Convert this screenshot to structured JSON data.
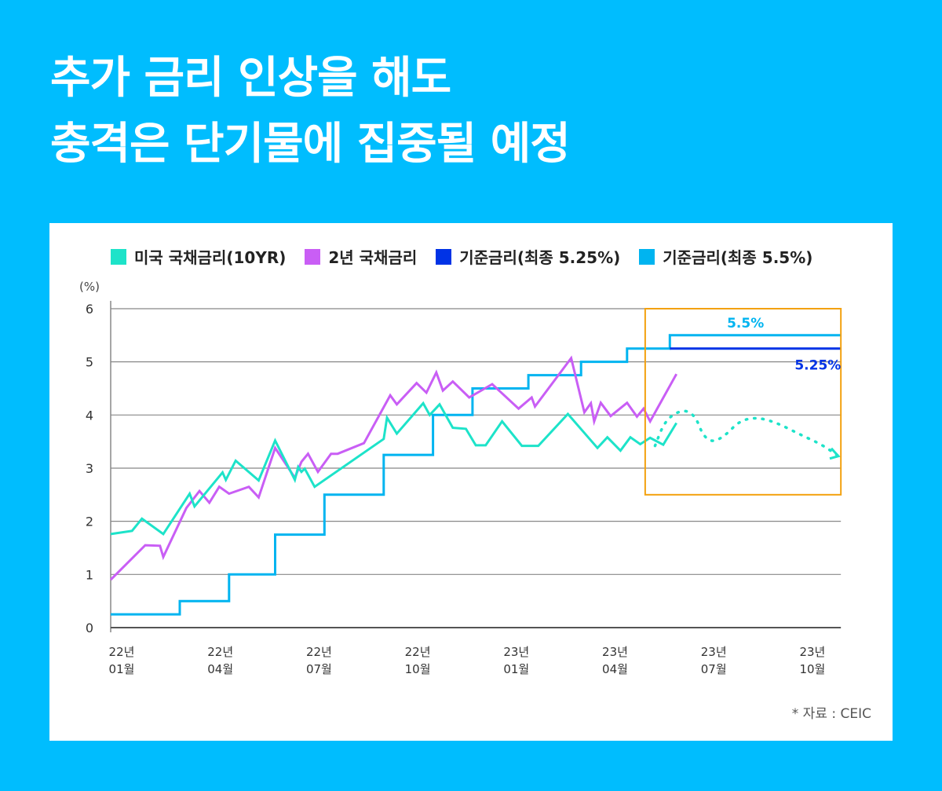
{
  "header": {
    "title_lines": [
      "추가 금리 인상을 해도",
      "충격은 단기물에 집중될 예정"
    ]
  },
  "source_note": "* 자료 : CEIC",
  "colors": {
    "background": "#00bdfe",
    "card": "#ffffff",
    "us10y": "#1de3c9",
    "us2y": "#c95ef5",
    "fed_525": "#0033e6",
    "fed_55": "#00b4f0",
    "highlight_box": "#f3a10f",
    "grid": "#777777"
  },
  "chart_data": {
    "type": "line",
    "title": "추가 금리 인상을 해도 충격은 단기물에 집중될 예정",
    "ylabel": "(%)",
    "xlabel": "",
    "ylim": [
      0,
      6
    ],
    "yticks": [
      0,
      1,
      2,
      3,
      4,
      5,
      6
    ],
    "grid": true,
    "legend_position": "top",
    "x_unit": "months since 2022-01",
    "xlim": [
      0,
      22.2
    ],
    "xticks": [
      {
        "x": 0,
        "line1": "22년",
        "line2": "01월"
      },
      {
        "x": 3,
        "line1": "22년",
        "line2": "04월"
      },
      {
        "x": 6,
        "line1": "22년",
        "line2": "07월"
      },
      {
        "x": 9,
        "line1": "22년",
        "line2": "10월"
      },
      {
        "x": 12,
        "line1": "23년",
        "line2": "01월"
      },
      {
        "x": 15,
        "line1": "23년",
        "line2": "04월"
      },
      {
        "x": 18,
        "line1": "23년",
        "line2": "07월"
      },
      {
        "x": 21,
        "line1": "23년",
        "line2": "10월"
      }
    ],
    "series": [
      {
        "key": "us10y",
        "name": "미국 국채금리(10YR)",
        "color": "#1de3c9",
        "style": "solid",
        "points": [
          [
            0,
            1.76
          ],
          [
            0.65,
            1.82
          ],
          [
            0.95,
            2.05
          ],
          [
            1.6,
            1.76
          ],
          [
            2.4,
            2.52
          ],
          [
            2.55,
            2.28
          ],
          [
            3.4,
            2.92
          ],
          [
            3.5,
            2.78
          ],
          [
            3.8,
            3.14
          ],
          [
            4.5,
            2.77
          ],
          [
            5.0,
            3.52
          ],
          [
            5.6,
            2.78
          ],
          [
            5.7,
            3.02
          ],
          [
            5.8,
            2.93
          ],
          [
            5.9,
            2.99
          ],
          [
            6.2,
            2.65
          ],
          [
            8.3,
            3.55
          ],
          [
            8.4,
            3.95
          ],
          [
            8.7,
            3.65
          ],
          [
            9.5,
            4.22
          ],
          [
            9.7,
            4.0
          ],
          [
            10.0,
            4.2
          ],
          [
            10.4,
            3.76
          ],
          [
            10.8,
            3.74
          ],
          [
            11.1,
            3.43
          ],
          [
            11.4,
            3.43
          ],
          [
            11.9,
            3.88
          ],
          [
            12.5,
            3.42
          ],
          [
            13.0,
            3.42
          ],
          [
            13.9,
            4.02
          ],
          [
            14.8,
            3.38
          ],
          [
            15.1,
            3.58
          ],
          [
            15.5,
            3.33
          ],
          [
            15.8,
            3.58
          ],
          [
            16.1,
            3.45
          ],
          [
            16.4,
            3.57
          ],
          [
            16.8,
            3.44
          ],
          [
            17.2,
            3.85
          ]
        ]
      },
      {
        "key": "us2y",
        "name": "2년 국채금리",
        "color": "#c95ef5",
        "style": "solid",
        "points": [
          [
            0,
            0.9
          ],
          [
            1.05,
            1.55
          ],
          [
            1.5,
            1.54
          ],
          [
            1.6,
            1.33
          ],
          [
            2.3,
            2.25
          ],
          [
            2.7,
            2.57
          ],
          [
            3.0,
            2.35
          ],
          [
            3.3,
            2.65
          ],
          [
            3.6,
            2.52
          ],
          [
            4.2,
            2.65
          ],
          [
            4.5,
            2.45
          ],
          [
            5.0,
            3.38
          ],
          [
            5.6,
            2.82
          ],
          [
            5.8,
            3.12
          ],
          [
            6.0,
            3.27
          ],
          [
            6.3,
            2.93
          ],
          [
            6.7,
            3.27
          ],
          [
            6.9,
            3.27
          ],
          [
            7.7,
            3.47
          ],
          [
            8.5,
            4.37
          ],
          [
            8.7,
            4.2
          ],
          [
            9.3,
            4.6
          ],
          [
            9.6,
            4.42
          ],
          [
            9.9,
            4.8
          ],
          [
            10.1,
            4.46
          ],
          [
            10.4,
            4.63
          ],
          [
            10.9,
            4.33
          ],
          [
            11.6,
            4.58
          ],
          [
            12.4,
            4.12
          ],
          [
            12.8,
            4.33
          ],
          [
            12.9,
            4.16
          ],
          [
            14.0,
            5.07
          ],
          [
            14.4,
            4.05
          ],
          [
            14.6,
            4.22
          ],
          [
            14.7,
            3.88
          ],
          [
            14.9,
            4.23
          ],
          [
            15.2,
            3.98
          ],
          [
            15.7,
            4.23
          ],
          [
            16.0,
            3.97
          ],
          [
            16.2,
            4.12
          ],
          [
            16.4,
            3.88
          ],
          [
            17.2,
            4.77
          ]
        ]
      },
      {
        "key": "fed_525",
        "name": "기준금리(최종 5.25%)",
        "color": "#0033e6",
        "style": "step",
        "points": [
          [
            0,
            0.25
          ],
          [
            2.1,
            0.25
          ],
          [
            2.1,
            0.5
          ],
          [
            3.6,
            0.5
          ],
          [
            3.6,
            1.0
          ],
          [
            5.0,
            1.0
          ],
          [
            5.0,
            1.75
          ],
          [
            6.5,
            1.75
          ],
          [
            6.5,
            2.5
          ],
          [
            8.3,
            2.5
          ],
          [
            8.3,
            3.25
          ],
          [
            9.8,
            3.25
          ],
          [
            9.8,
            4.0
          ],
          [
            11.0,
            4.0
          ],
          [
            11.0,
            4.5
          ],
          [
            12.7,
            4.5
          ],
          [
            12.7,
            4.75
          ],
          [
            14.3,
            4.75
          ],
          [
            14.3,
            5.0
          ],
          [
            15.7,
            5.0
          ],
          [
            15.7,
            5.25
          ],
          [
            22.2,
            5.25
          ]
        ],
        "end_label": "5.25%"
      },
      {
        "key": "fed_55",
        "name": "기준금리(최종 5.5%)",
        "color": "#00b4f0",
        "style": "step",
        "points": [
          [
            0,
            0.25
          ],
          [
            2.1,
            0.25
          ],
          [
            2.1,
            0.5
          ],
          [
            3.6,
            0.5
          ],
          [
            3.6,
            1.0
          ],
          [
            5.0,
            1.0
          ],
          [
            5.0,
            1.75
          ],
          [
            6.5,
            1.75
          ],
          [
            6.5,
            2.5
          ],
          [
            8.3,
            2.5
          ],
          [
            8.3,
            3.25
          ],
          [
            9.8,
            3.25
          ],
          [
            9.8,
            4.0
          ],
          [
            11.0,
            4.0
          ],
          [
            11.0,
            4.5
          ],
          [
            12.7,
            4.5
          ],
          [
            12.7,
            4.75
          ],
          [
            14.3,
            4.75
          ],
          [
            14.3,
            5.0
          ],
          [
            15.7,
            5.0
          ],
          [
            15.7,
            5.25
          ],
          [
            17.0,
            5.25
          ],
          [
            17.0,
            5.5
          ],
          [
            22.2,
            5.5
          ]
        ],
        "end_label": "5.5%"
      }
    ],
    "projection": {
      "series": "us10y",
      "color": "#1de3c9",
      "style": "dotted-arrow",
      "points": [
        [
          16.55,
          3.42
        ],
        [
          16.8,
          3.82
        ],
        [
          17.1,
          4.02
        ],
        [
          17.5,
          4.1
        ],
        [
          17.8,
          3.95
        ],
        [
          18.0,
          3.62
        ],
        [
          18.3,
          3.48
        ],
        [
          18.7,
          3.62
        ],
        [
          19.1,
          3.88
        ],
        [
          19.6,
          3.96
        ],
        [
          20.2,
          3.87
        ],
        [
          21.0,
          3.62
        ],
        [
          21.6,
          3.45
        ],
        [
          22.1,
          3.24
        ]
      ]
    },
    "highlight_box": {
      "x_range": [
        16.25,
        22.2
      ],
      "y_range": [
        2.5,
        6.0
      ],
      "color": "#f3a10f"
    }
  }
}
